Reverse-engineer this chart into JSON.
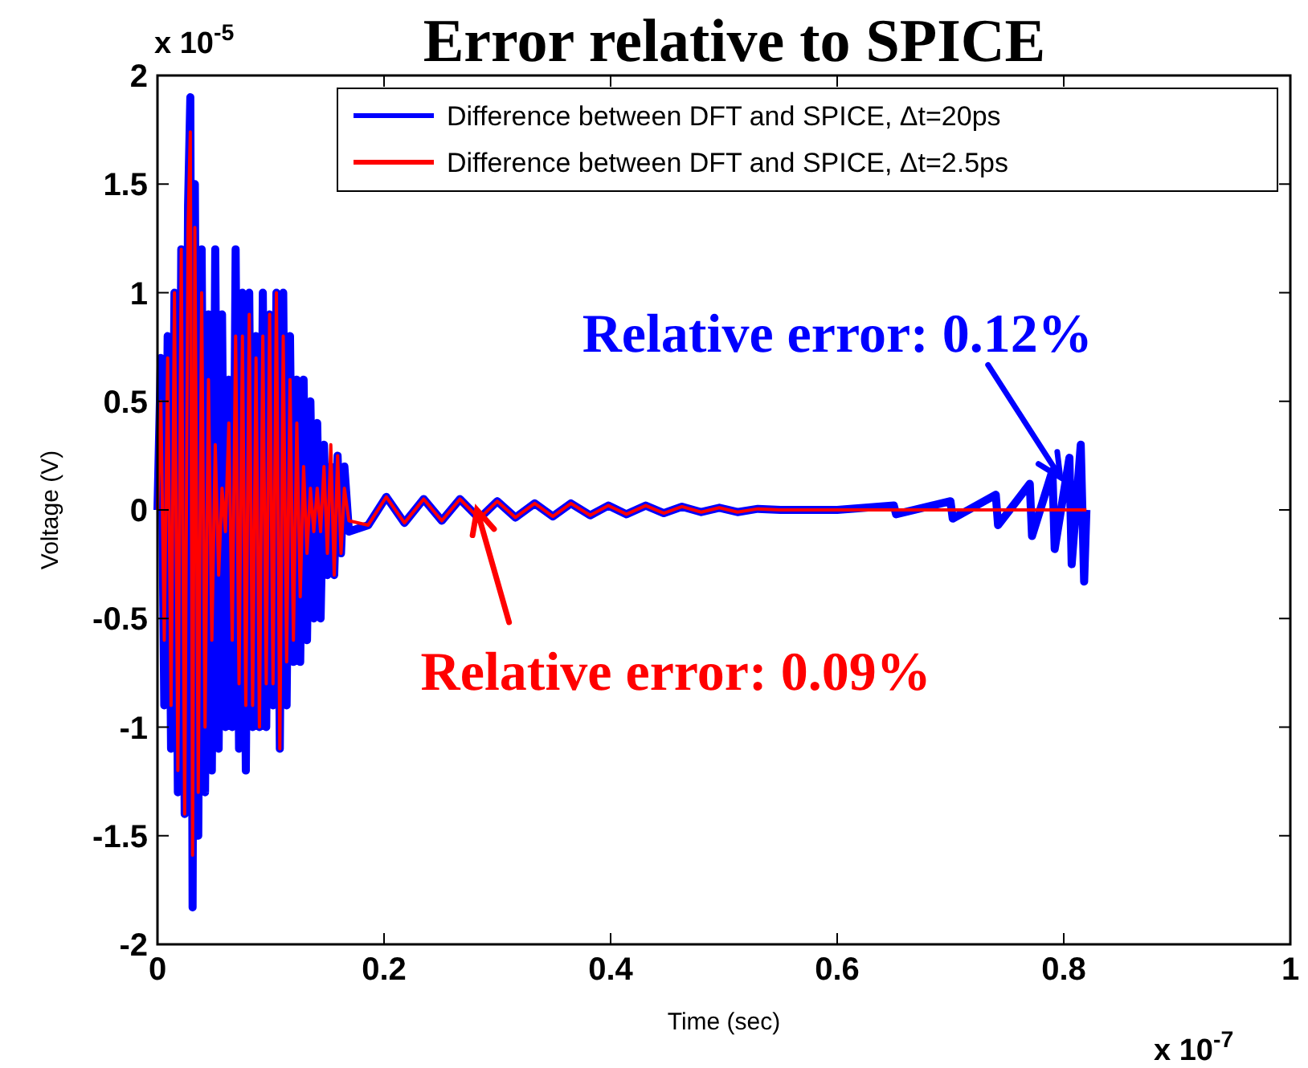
{
  "chart_data": {
    "type": "line",
    "title": "Error relative to SPICE",
    "xlabel": "Time (sec)",
    "ylabel": "Voltage (V)",
    "xlim": [
      0,
      1
    ],
    "xticks": [
      0,
      0.2,
      0.4,
      0.6,
      0.8,
      1
    ],
    "ylim": [
      -2,
      2
    ],
    "yticks": [
      -2,
      -1.5,
      -1,
      -0.5,
      0,
      0.5,
      1,
      1.5,
      2
    ],
    "grid": false,
    "legend": "top right",
    "line_style": "solid",
    "marker": "none",
    "annotations": [
      "x 10$^{-5}$",
      "x 10$^{-7}$",
      {
        "text": "Relative error: 0.12%",
        "x": 0.797,
        "y": 0.15
      },
      {
        "text": "Relative error: 0.09%",
        "x": 0.282,
        "y": 0
      }
    ],
    "series": [
      {
        "name": "Difference between DFT and SPICE, Δt=20ps",
        "color": "#0000ff",
        "x": [
          0,
          0.003,
          0.006,
          0.009,
          0.012,
          0.015,
          0.018,
          0.021,
          0.024,
          0.027,
          0.029,
          0.031,
          0.033,
          0.036,
          0.039,
          0.042,
          0.045,
          0.048,
          0.051,
          0.054,
          0.057,
          0.06,
          0.063,
          0.066,
          0.069,
          0.072,
          0.075,
          0.078,
          0.081,
          0.084,
          0.087,
          0.09,
          0.093,
          0.096,
          0.099,
          0.102,
          0.105,
          0.108,
          0.111,
          0.114,
          0.117,
          0.12,
          0.123,
          0.126,
          0.129,
          0.132,
          0.135,
          0.138,
          0.141,
          0.144,
          0.147,
          0.15,
          0.153,
          0.156,
          0.159,
          0.162,
          0.165,
          0.169,
          0.186,
          0.202,
          0.218,
          0.235,
          0.251,
          0.267,
          0.284,
          0.3,
          0.316,
          0.333,
          0.349,
          0.365,
          0.382,
          0.398,
          0.414,
          0.431,
          0.447,
          0.463,
          0.48,
          0.496,
          0.512,
          0.53,
          0.55,
          0.6,
          0.65,
          0.652,
          0.7,
          0.702,
          0.74,
          0.742,
          0.77,
          0.772,
          0.79,
          0.792,
          0.805,
          0.807,
          0.815,
          0.818,
          0.82
        ],
        "values": [
          0,
          0.7,
          -0.9,
          0.8,
          -1.1,
          1.0,
          -1.3,
          1.2,
          -1.4,
          1.4,
          1.9,
          -1.83,
          1.5,
          -1.5,
          1.2,
          -1.3,
          0.9,
          -1.2,
          1.2,
          -1.1,
          0.9,
          -1.0,
          0.6,
          -1.0,
          1.2,
          -1.1,
          1.0,
          -1.2,
          1.0,
          -1.0,
          0.8,
          -1.0,
          1.0,
          -1.0,
          0.9,
          -0.9,
          1.0,
          -1.1,
          1.0,
          -0.9,
          0.8,
          -0.7,
          0.6,
          -0.7,
          0.6,
          -0.6,
          0.5,
          -0.5,
          0.4,
          -0.5,
          0.3,
          -0.3,
          0.2,
          -0.3,
          0.25,
          -0.2,
          0.2,
          -0.1,
          -0.07,
          0.06,
          -0.06,
          0.05,
          -0.05,
          0.05,
          -0.04,
          0.04,
          -0.035,
          0.03,
          -0.03,
          0.03,
          -0.025,
          0.02,
          -0.02,
          0.02,
          -0.015,
          0.015,
          -0.01,
          0.01,
          -0.01,
          0.005,
          0,
          0,
          0.02,
          -0.02,
          0.04,
          -0.04,
          0.07,
          -0.07,
          0.12,
          -0.12,
          0.18,
          -0.18,
          0.24,
          -0.25,
          0.3,
          -0.33,
          0
        ]
      },
      {
        "name": "Difference between DFT and SPICE, Δt=2.5ps",
        "color": "#ff0000",
        "x": [
          0,
          0.003,
          0.006,
          0.009,
          0.012,
          0.015,
          0.018,
          0.021,
          0.024,
          0.027,
          0.029,
          0.031,
          0.033,
          0.036,
          0.039,
          0.042,
          0.045,
          0.048,
          0.051,
          0.054,
          0.057,
          0.06,
          0.063,
          0.066,
          0.069,
          0.072,
          0.075,
          0.078,
          0.081,
          0.084,
          0.087,
          0.09,
          0.093,
          0.096,
          0.099,
          0.102,
          0.105,
          0.108,
          0.111,
          0.114,
          0.117,
          0.12,
          0.123,
          0.126,
          0.129,
          0.132,
          0.135,
          0.138,
          0.141,
          0.144,
          0.147,
          0.15,
          0.153,
          0.156,
          0.159,
          0.162,
          0.165,
          0.169,
          0.186,
          0.202,
          0.218,
          0.235,
          0.251,
          0.267,
          0.284,
          0.3,
          0.316,
          0.333,
          0.349,
          0.365,
          0.382,
          0.398,
          0.414,
          0.431,
          0.447,
          0.463,
          0.48,
          0.496,
          0.512,
          0.53,
          0.55,
          0.82
        ],
        "values": [
          0,
          0.5,
          -0.6,
          0.7,
          -0.9,
          1.0,
          -1.2,
          1.2,
          -1.4,
          1.3,
          1.74,
          -1.59,
          1.3,
          -1.3,
          1.0,
          -1.0,
          0.6,
          -0.6,
          0.3,
          -0.3,
          0.1,
          -0.1,
          0.4,
          -0.6,
          0.8,
          -0.8,
          0.8,
          -0.9,
          0.9,
          -0.9,
          0.7,
          -1.0,
          0.8,
          -0.8,
          0.9,
          -0.8,
          1.0,
          -1.1,
          0.8,
          -0.7,
          0.6,
          -0.6,
          0.4,
          -0.4,
          0.2,
          -0.2,
          0.1,
          -0.1,
          0.1,
          -0.1,
          0.2,
          -0.2,
          0.3,
          -0.3,
          0.25,
          -0.2,
          0.1,
          -0.05,
          -0.07,
          0.06,
          -0.06,
          0.05,
          -0.05,
          0.05,
          -0.04,
          0.04,
          -0.035,
          0.03,
          -0.03,
          0.03,
          -0.025,
          0.02,
          -0.02,
          0.02,
          -0.015,
          0.015,
          -0.01,
          0.01,
          -0.01,
          0.005,
          0,
          0
        ]
      }
    ]
  }
}
